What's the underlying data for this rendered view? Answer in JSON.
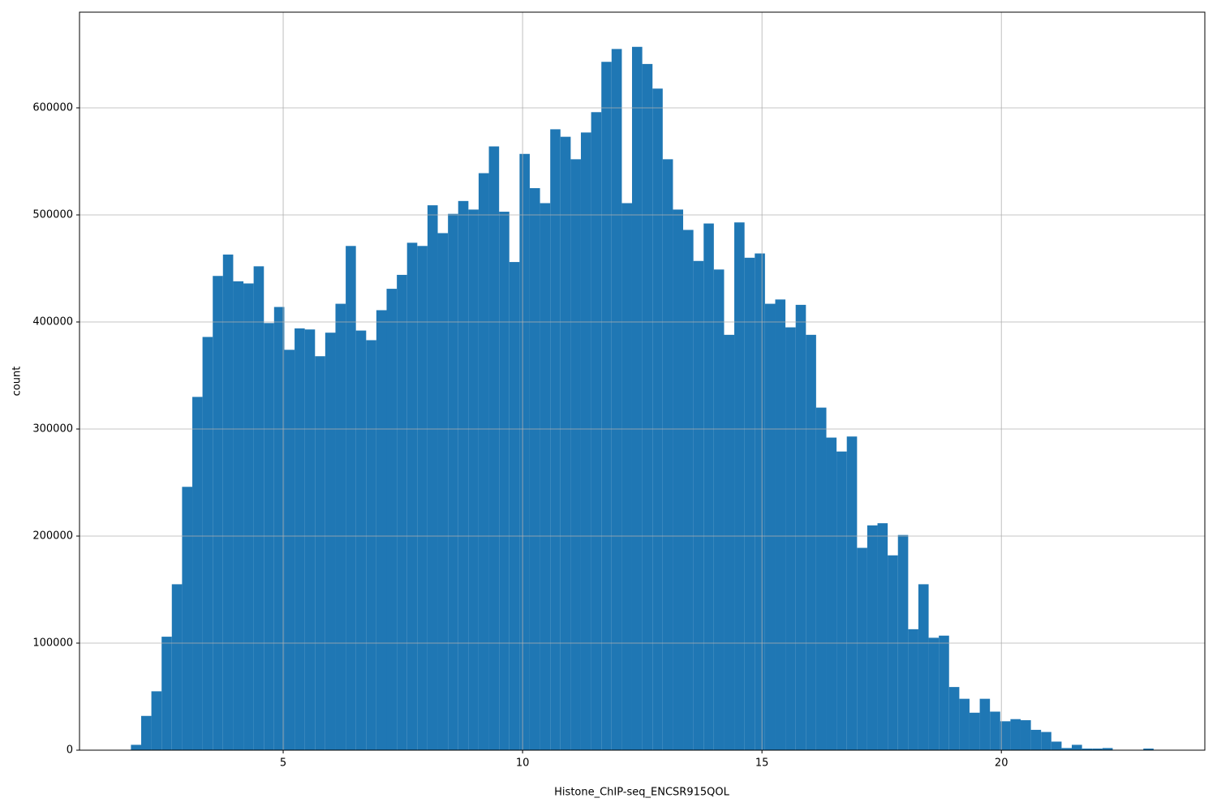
{
  "chart_data": {
    "type": "histogram",
    "xlabel": "Histone_ChIP-seq_ENCSR915QOL",
    "ylabel": "count",
    "color": "#1f77b4",
    "grid": true,
    "xlim": [
      0.746,
      24.25
    ],
    "ylim": [
      0,
      689400
    ],
    "xticks": [
      5,
      10,
      15,
      20
    ],
    "yticks": [
      0,
      100000,
      200000,
      300000,
      400000,
      500000,
      600000
    ],
    "bins": [
      1.82,
      2.034,
      2.247,
      2.461,
      2.674,
      2.888,
      3.102,
      3.315,
      3.529,
      3.742,
      3.956,
      4.17,
      4.383,
      4.597,
      4.81,
      5.024,
      5.238,
      5.451,
      5.665,
      5.878,
      6.092,
      6.306,
      6.519,
      6.733,
      6.946,
      7.16,
      7.374,
      7.587,
      7.801,
      8.014,
      8.228,
      8.442,
      8.655,
      8.869,
      9.082,
      9.296,
      9.51,
      9.723,
      9.937,
      10.15,
      10.364,
      10.578,
      10.791,
      11.005,
      11.218,
      11.432,
      11.646,
      11.859,
      12.073,
      12.286,
      12.5,
      12.714,
      12.927,
      13.141,
      13.354,
      13.568,
      13.782,
      13.995,
      14.209,
      14.422,
      14.636,
      14.85,
      15.063,
      15.277,
      15.49,
      15.704,
      15.918,
      16.131,
      16.345,
      16.558,
      16.772,
      16.986,
      17.199,
      17.413,
      17.626,
      17.84,
      18.054,
      18.267,
      18.481,
      18.694,
      18.908,
      19.122,
      19.335,
      19.549,
      19.762,
      19.976,
      20.19,
      20.403,
      20.617,
      20.83,
      21.044,
      21.258,
      21.471,
      21.685,
      21.898,
      22.112,
      22.326,
      22.539,
      22.753,
      22.966,
      23.18
    ],
    "counts": [
      5000,
      32000,
      55000,
      106000,
      155000,
      246000,
      330000,
      386000,
      443000,
      463000,
      438000,
      436000,
      452000,
      399000,
      414000,
      374000,
      394000,
      393000,
      368000,
      390000,
      417000,
      471000,
      392000,
      383000,
      411000,
      431000,
      444000,
      474000,
      471000,
      509000,
      483000,
      501000,
      513000,
      505000,
      539000,
      564000,
      503000,
      456000,
      557000,
      525000,
      511000,
      580000,
      573000,
      552000,
      577000,
      596000,
      643000,
      655000,
      511000,
      657000,
      641000,
      618000,
      552000,
      505000,
      486000,
      457000,
      492000,
      449000,
      388000,
      493000,
      460000,
      464000,
      417000,
      421000,
      395000,
      416000,
      388000,
      320000,
      292000,
      279000,
      293000,
      189000,
      210000,
      212000,
      182000,
      201000,
      113000,
      155000,
      105000,
      107000,
      59000,
      48000,
      35000,
      48000,
      36000,
      27000,
      29000,
      28000,
      19000,
      17000,
      8000,
      2000,
      5000,
      1500,
      1500,
      2000,
      0,
      0,
      0,
      1500
    ]
  }
}
